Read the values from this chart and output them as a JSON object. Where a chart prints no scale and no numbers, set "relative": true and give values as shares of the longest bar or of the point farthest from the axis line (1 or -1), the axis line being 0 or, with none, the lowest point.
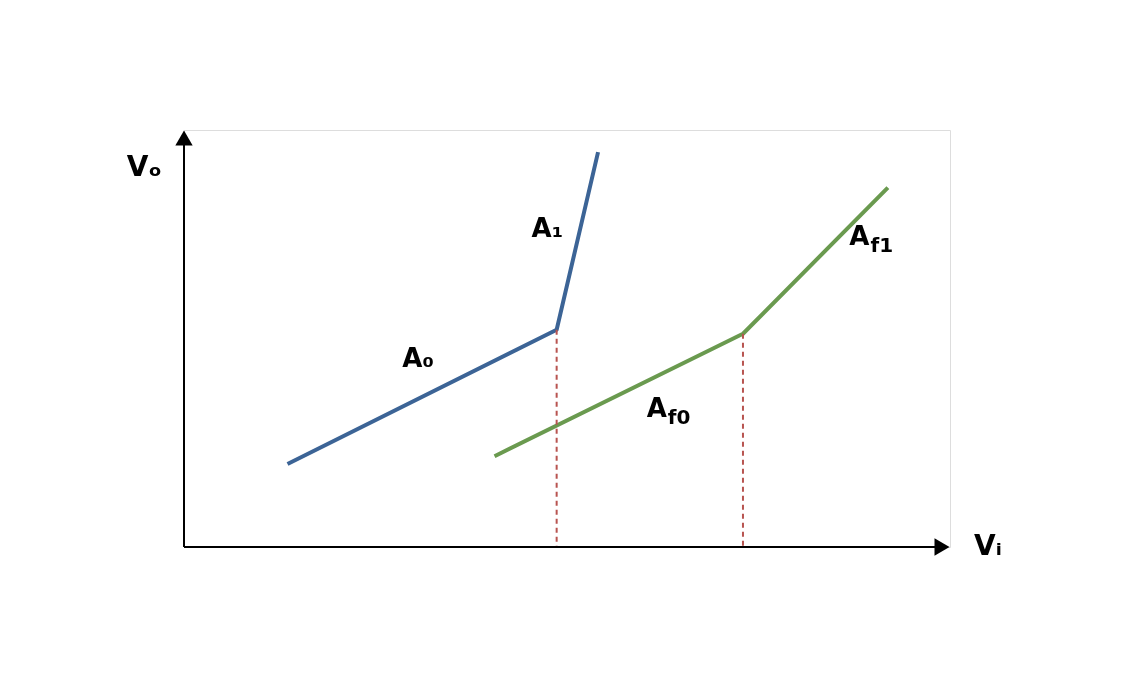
{
  "chart_data": {
    "type": "line",
    "relative": true,
    "xlabel": "Vᵢ",
    "ylabel": "Vₒ",
    "marker": "none",
    "line_style": "solid",
    "categories": [
      null,
      null,
      null,
      null,
      null,
      null,
      null,
      null,
      null,
      null,
      null,
      null,
      null,
      null,
      null,
      null,
      null,
      null,
      null,
      null,
      null,
      null,
      null,
      null,
      null,
      null,
      null,
      null,
      null,
      null,
      null,
      null,
      null,
      null,
      null,
      null,
      null,
      null
    ],
    "series": [
      {
        "color": "#3c6496",
        "values": [
          null,
          null,
          null,
          null,
          null,
          0.21,
          null,
          null,
          null,
          null,
          null,
          null,
          null,
          null,
          null,
          null,
          null,
          null,
          0.55,
          null,
          1.0,
          null,
          null,
          null,
          null,
          null,
          null,
          null,
          null,
          null,
          null,
          null,
          null,
          null,
          null,
          null,
          null,
          null
        ]
      },
      {
        "color": "#6a9a4f",
        "values": [
          null,
          null,
          null,
          null,
          null,
          null,
          null,
          null,
          null,
          null,
          null,
          null,
          null,
          null,
          null,
          0.23,
          null,
          null,
          null,
          null,
          null,
          null,
          null,
          null,
          null,
          null,
          null,
          0.54,
          null,
          null,
          null,
          null,
          null,
          null,
          0.91,
          null,
          null,
          null
        ]
      }
    ],
    "annotations": [
      "A₀",
      "A₁",
      "A$_{f0}$",
      "A$_{f1}$"
    ]
  }
}
